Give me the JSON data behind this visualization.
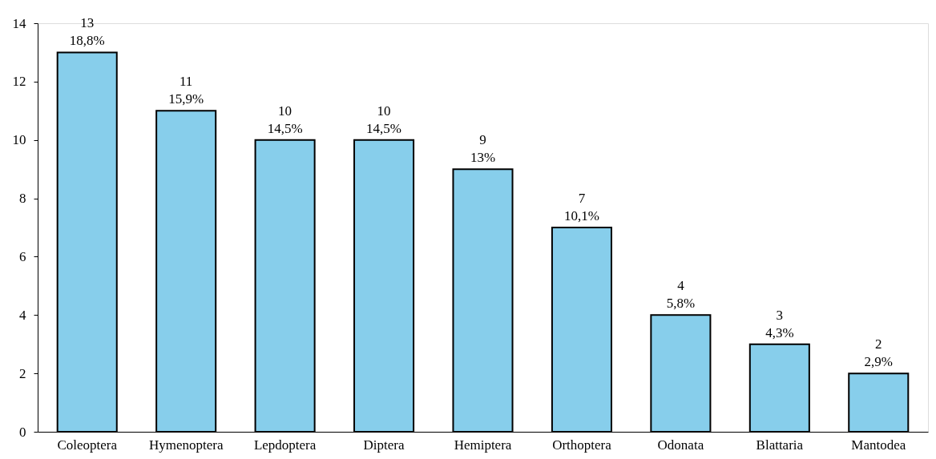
{
  "chart_data": {
    "type": "bar",
    "categories": [
      "Coleoptera",
      "Hymenoptera",
      "Lepdoptera",
      "Diptera",
      "Hemiptera",
      "Orthoptera",
      "Odonata",
      "Blattaria",
      "Mantodea"
    ],
    "values": [
      13,
      11,
      10,
      10,
      9,
      7,
      4,
      3,
      2
    ],
    "color": "#87ceeb",
    "value_labels": [
      "13\n18,8%",
      "11\n15,9%",
      "10\n14,5%",
      "10\n14,5%",
      "9\n13%",
      "7\n10,1%",
      "4\n5,8%",
      "3\n4,3%",
      "2\n2,9%"
    ],
    "ylim": [
      0,
      14
    ],
    "yticks": [
      0,
      2,
      4,
      6,
      8,
      10,
      12,
      14
    ]
  }
}
